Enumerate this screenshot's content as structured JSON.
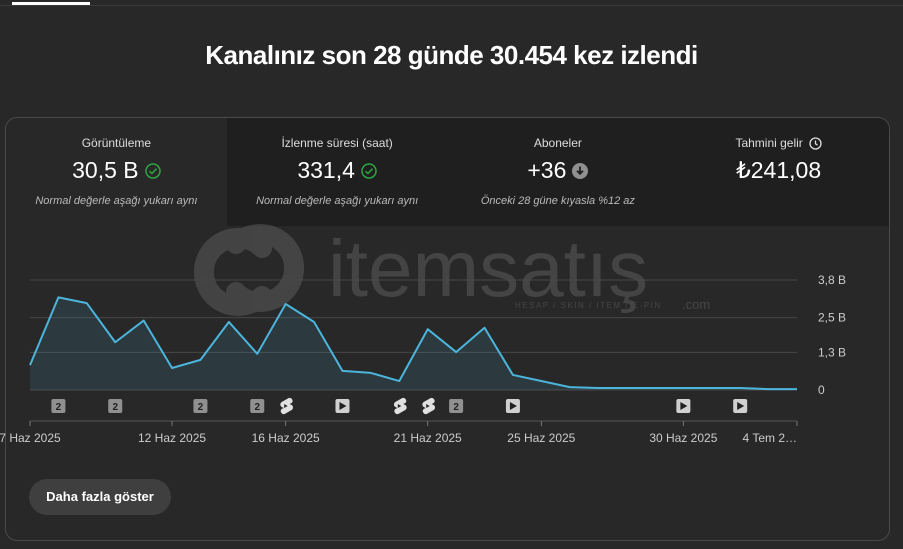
{
  "header": {
    "title": "Kanalınız son 28 günde 30.454 kez izlendi"
  },
  "metrics": [
    {
      "label": "Görüntüleme",
      "value": "30,5 B",
      "note": "Normal değerle aşağı yukarı aynı"
    },
    {
      "label": "İzlenme süresi (saat)",
      "value": "331,4",
      "note": "Normal değerle aşağı yukarı aynı"
    },
    {
      "label": "Aboneler",
      "value": "+36",
      "note": "Önceki 28 güne kıyasla %12 az"
    },
    {
      "label": "Tahmini gelir",
      "value": "₺241,08"
    }
  ],
  "watermark": {
    "name": "itemsatış",
    "tagline": "HESAP / SKIN / ITEM / E-PIN",
    "suffix": ".com"
  },
  "chart_data": {
    "type": "line",
    "categories": [
      "7 Haz 2025",
      null,
      null,
      null,
      null,
      "12 Haz 2025",
      null,
      null,
      null,
      "16 Haz 2025",
      null,
      null,
      null,
      null,
      "21 Haz 2025",
      null,
      null,
      null,
      "25 Haz 2025",
      null,
      null,
      null,
      null,
      "30 Haz 2025",
      null,
      null,
      null,
      "4 Tem 2…"
    ],
    "series": [
      {
        "name": "Görüntüleme",
        "color": "#4cb5dc",
        "values": [
          0.86,
          3.2,
          3.0,
          1.65,
          2.4,
          0.76,
          1.04,
          2.35,
          1.25,
          2.97,
          2.35,
          0.66,
          0.59,
          0.31,
          2.1,
          1.31,
          2.15,
          0.52,
          0.31,
          0.1,
          0.07,
          0.07,
          0.07,
          0.07,
          0.07,
          0.07,
          0.03,
          0.03
        ]
      }
    ],
    "ylim": [
      0,
      3.8
    ],
    "yticks": [
      {
        "value": 0,
        "label": "0"
      },
      {
        "value": 1.3,
        "label": "1,3 B"
      },
      {
        "value": 2.5,
        "label": "2,5 B"
      },
      {
        "value": 3.8,
        "label": "3,8 B"
      }
    ],
    "grid": true,
    "event_counts": [
      null,
      "2",
      null,
      "2",
      null,
      null,
      "2",
      null,
      "2",
      null,
      null,
      null,
      null,
      null,
      null,
      "2",
      null,
      null,
      null,
      null,
      null,
      null,
      null,
      null,
      null,
      null,
      null,
      null
    ],
    "event_icons": [
      null,
      null,
      null,
      null,
      null,
      null,
      null,
      null,
      null,
      "shorts",
      null,
      "video",
      null,
      "shorts",
      "shorts",
      null,
      null,
      "video",
      null,
      null,
      null,
      null,
      null,
      "video",
      null,
      "video",
      null,
      null
    ]
  },
  "button": "Daha fazla göster"
}
